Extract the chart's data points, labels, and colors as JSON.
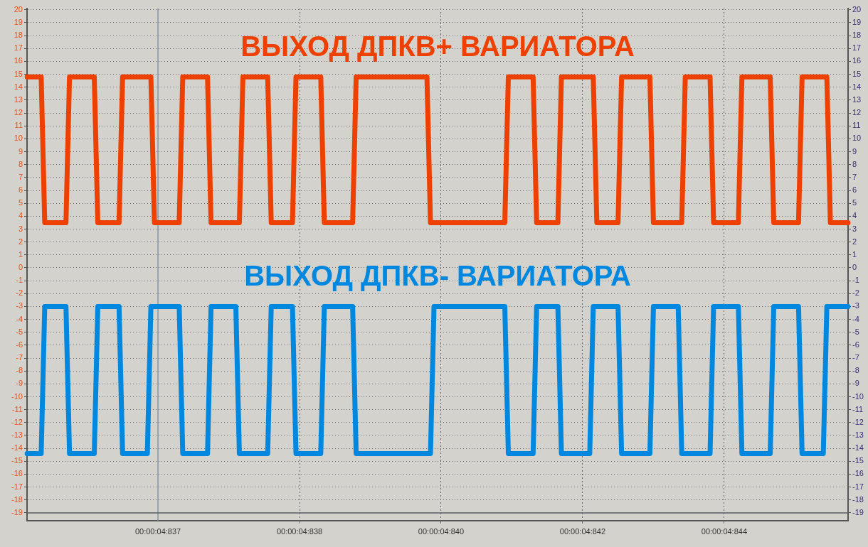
{
  "chart_data": {
    "type": "line",
    "line_style": "solid",
    "marker": "none",
    "grid": true,
    "categories": [
      null,
      null,
      null,
      null,
      null,
      null,
      null,
      null,
      null,
      null,
      null,
      null,
      null,
      null,
      null,
      null,
      null,
      null,
      null,
      null,
      null,
      null,
      null,
      null,
      null,
      null,
      null,
      null,
      null,
      null,
      null,
      null,
      null,
      null,
      null,
      null,
      null,
      "00:00:04:837",
      null,
      null,
      null,
      null,
      null,
      null,
      null,
      null,
      null,
      null,
      null,
      null,
      null,
      null,
      null,
      null,
      null,
      null,
      null,
      null,
      null,
      null,
      null,
      null,
      null,
      null,
      null,
      null,
      null,
      null,
      null,
      null,
      null,
      null,
      null,
      null,
      null,
      null,
      null,
      "00:00:04:838",
      null,
      null,
      null,
      null,
      null,
      null,
      null,
      null,
      null,
      null,
      null,
      null,
      null,
      null,
      null,
      null,
      null,
      null,
      null,
      null,
      null,
      null,
      null,
      null,
      null,
      null,
      null,
      null,
      null,
      null,
      null,
      null,
      null,
      null,
      null,
      null,
      null,
      null,
      null,
      "00:00:04:840",
      null,
      null,
      null,
      null,
      null,
      null,
      null,
      null,
      null,
      null,
      null,
      null,
      null,
      null,
      null,
      null,
      null,
      null,
      null,
      null,
      null,
      null,
      null,
      null,
      null,
      null,
      null,
      null,
      null,
      null,
      null,
      null,
      null,
      null,
      null,
      null,
      null,
      null,
      null,
      "00:00:04:842",
      null,
      null,
      null,
      null,
      null,
      null,
      null,
      null,
      null,
      null,
      null,
      null,
      null,
      null,
      null,
      null,
      null,
      null,
      null,
      null,
      null,
      null,
      null,
      null,
      null,
      null,
      null,
      null,
      null,
      null,
      null,
      null,
      null,
      null,
      null,
      null,
      null,
      null,
      null,
      "00:00:04:844",
      null,
      null,
      null,
      null,
      null,
      null,
      null,
      null,
      null,
      null,
      null,
      null,
      null,
      null,
      null,
      null,
      null,
      null,
      null,
      null,
      null,
      null,
      null,
      null,
      null,
      null,
      null,
      null,
      null,
      null,
      null,
      null,
      null,
      null,
      null
    ],
    "ylim": [
      -19.6,
      20.1
    ],
    "yticks": [
      -19,
      -18,
      -17,
      -16,
      -15,
      -14,
      -13,
      -12,
      -11,
      -10,
      -9,
      -8,
      -7,
      -6,
      -5,
      -4,
      -3,
      -2,
      -1,
      0,
      1,
      2,
      3,
      4,
      5,
      6,
      7,
      8,
      9,
      10,
      11,
      12,
      13,
      14,
      15,
      16,
      17,
      18,
      19,
      20
    ],
    "y2lim": [
      -19.6,
      20.1
    ],
    "y2ticks": [
      -19,
      -18,
      -17,
      -16,
      -15,
      -14,
      -13,
      -12,
      -11,
      -10,
      -9,
      -8,
      -7,
      -6,
      -5,
      -4,
      -3,
      -2,
      -1,
      0,
      1,
      2,
      3,
      4,
      5,
      6,
      7,
      8,
      9,
      10,
      11,
      12,
      13,
      14,
      15,
      16,
      17,
      18,
      19,
      20
    ],
    "ref_lines": [
      {
        "axis": "x",
        "value": "00:00:04:837",
        "label": null
      },
      {
        "axis": "y",
        "value": -19,
        "label": null
      }
    ],
    "series": [
      {
        "name": "ВЫХОД ДПКВ+ ВАРИАТОРА",
        "color": "#ee4000",
        "values": [
          14.8,
          14.8,
          14.8,
          14.8,
          14.8,
          3.5,
          3.5,
          3.5,
          3.5,
          3.5,
          3.5,
          3.5,
          14.8,
          14.8,
          14.8,
          14.8,
          14.8,
          14.8,
          14.8,
          14.8,
          3.5,
          3.5,
          3.5,
          3.5,
          3.5,
          3.5,
          3.5,
          14.8,
          14.8,
          14.8,
          14.8,
          14.8,
          14.8,
          14.8,
          14.8,
          14.8,
          3.5,
          3.5,
          3.5,
          3.5,
          3.5,
          3.5,
          3.5,
          3.5,
          14.8,
          14.8,
          14.8,
          14.8,
          14.8,
          14.8,
          14.8,
          14.8,
          3.5,
          3.5,
          3.5,
          3.5,
          3.5,
          3.5,
          3.5,
          3.5,
          3.5,
          14.8,
          14.8,
          14.8,
          14.8,
          14.8,
          14.8,
          14.8,
          14.8,
          3.5,
          3.5,
          3.5,
          3.5,
          3.5,
          3.5,
          3.5,
          14.8,
          14.8,
          14.8,
          14.8,
          14.8,
          14.8,
          14.8,
          14.8,
          3.5,
          3.5,
          3.5,
          3.5,
          3.5,
          3.5,
          3.5,
          3.5,
          3.5,
          14.8,
          14.8,
          14.8,
          14.8,
          14.8,
          14.8,
          14.8,
          14.8,
          14.8,
          14.8,
          14.8,
          14.8,
          14.8,
          14.8,
          14.8,
          14.8,
          14.8,
          14.8,
          14.8,
          14.8,
          14.8,
          3.5,
          3.5,
          3.5,
          3.5,
          3.5,
          3.5,
          3.5,
          3.5,
          3.5,
          3.5,
          3.5,
          3.5,
          3.5,
          3.5,
          3.5,
          3.5,
          3.5,
          3.5,
          3.5,
          3.5,
          3.5,
          3.5,
          14.8,
          14.8,
          14.8,
          14.8,
          14.8,
          14.8,
          14.8,
          14.8,
          3.5,
          3.5,
          3.5,
          3.5,
          3.5,
          3.5,
          3.5,
          14.8,
          14.8,
          14.8,
          14.8,
          14.8,
          14.8,
          14.8,
          14.8,
          14.8,
          14.8,
          3.5,
          3.5,
          3.5,
          3.5,
          3.5,
          3.5,
          3.5,
          14.8,
          14.8,
          14.8,
          14.8,
          14.8,
          14.8,
          14.8,
          14.8,
          14.8,
          3.5,
          3.5,
          3.5,
          3.5,
          3.5,
          3.5,
          3.5,
          3.5,
          3.5,
          14.8,
          14.8,
          14.8,
          14.8,
          14.8,
          14.8,
          14.8,
          14.8,
          3.5,
          3.5,
          3.5,
          3.5,
          3.5,
          3.5,
          3.5,
          3.5,
          14.8,
          14.8,
          14.8,
          14.8,
          14.8,
          14.8,
          14.8,
          14.8,
          14.8,
          3.5,
          3.5,
          3.5,
          3.5,
          3.5,
          3.5,
          3.5,
          3.5,
          14.8,
          14.8,
          14.8,
          14.8,
          14.8,
          14.8,
          14.8,
          14.8,
          3.5,
          3.5,
          3.5,
          3.5,
          3.5,
          3.5
        ]
      },
      {
        "name": "ВЫХОД ДПКВ- ВАРИАТОРА",
        "color": "#0088e0",
        "values": [
          -14.4,
          -14.4,
          -14.4,
          -14.4,
          -14.4,
          -3,
          -3,
          -3,
          -3,
          -3,
          -3,
          -3,
          -14.4,
          -14.4,
          -14.4,
          -14.4,
          -14.4,
          -14.4,
          -14.4,
          -14.4,
          -3,
          -3,
          -3,
          -3,
          -3,
          -3,
          -3,
          -14.4,
          -14.4,
          -14.4,
          -14.4,
          -14.4,
          -14.4,
          -14.4,
          -14.4,
          -3,
          -3,
          -3,
          -3,
          -3,
          -3,
          -3,
          -3,
          -3,
          -14.4,
          -14.4,
          -14.4,
          -14.4,
          -14.4,
          -14.4,
          -14.4,
          -14.4,
          -3,
          -3,
          -3,
          -3,
          -3,
          -3,
          -3,
          -3,
          -14.4,
          -14.4,
          -14.4,
          -14.4,
          -14.4,
          -14.4,
          -14.4,
          -14.4,
          -14.4,
          -3,
          -3,
          -3,
          -3,
          -3,
          -3,
          -3,
          -14.4,
          -14.4,
          -14.4,
          -14.4,
          -14.4,
          -14.4,
          -14.4,
          -14.4,
          -3,
          -3,
          -3,
          -3,
          -3,
          -3,
          -3,
          -3,
          -3,
          -14.4,
          -14.4,
          -14.4,
          -14.4,
          -14.4,
          -14.4,
          -14.4,
          -14.4,
          -14.4,
          -14.4,
          -14.4,
          -14.4,
          -14.4,
          -14.4,
          -14.4,
          -14.4,
          -14.4,
          -14.4,
          -14.4,
          -14.4,
          -14.4,
          -14.4,
          -3,
          -3,
          -3,
          -3,
          -3,
          -3,
          -3,
          -3,
          -3,
          -3,
          -3,
          -3,
          -3,
          -3,
          -3,
          -3,
          -3,
          -3,
          -3,
          -3,
          -3,
          -14.4,
          -14.4,
          -14.4,
          -14.4,
          -14.4,
          -14.4,
          -14.4,
          -14.4,
          -3,
          -3,
          -3,
          -3,
          -3,
          -3,
          -3,
          -14.4,
          -14.4,
          -14.4,
          -14.4,
          -14.4,
          -14.4,
          -14.4,
          -14.4,
          -14.4,
          -3,
          -3,
          -3,
          -3,
          -3,
          -3,
          -3,
          -3,
          -14.4,
          -14.4,
          -14.4,
          -14.4,
          -14.4,
          -14.4,
          -14.4,
          -14.4,
          -14.4,
          -3,
          -3,
          -3,
          -3,
          -3,
          -3,
          -3,
          -3,
          -14.4,
          -14.4,
          -14.4,
          -14.4,
          -14.4,
          -14.4,
          -14.4,
          -14.4,
          -14.4,
          -3,
          -3,
          -3,
          -3,
          -3,
          -3,
          -3,
          -3,
          -14.4,
          -14.4,
          -14.4,
          -14.4,
          -14.4,
          -14.4,
          -14.4,
          -14.4,
          -14.4,
          -3,
          -3,
          -3,
          -3,
          -3,
          -3,
          -3,
          -3,
          -14.4,
          -14.4,
          -14.4,
          -14.4,
          -14.4,
          -14.4,
          -14.4,
          -3,
          -3,
          -3,
          -3,
          -3,
          -3,
          -3
        ]
      }
    ]
  }
}
